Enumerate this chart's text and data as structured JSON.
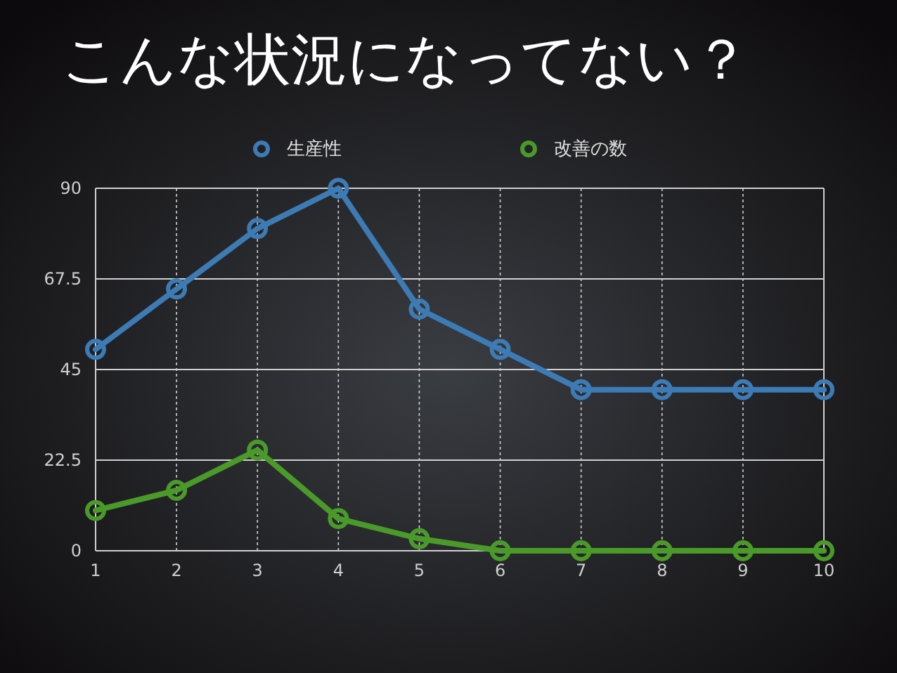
{
  "chart_data": {
    "type": "line",
    "title": "こんな状況になってない？",
    "x": [
      1,
      2,
      3,
      4,
      5,
      6,
      7,
      8,
      9,
      10
    ],
    "series": [
      {
        "name": "生産性",
        "color": "#3d7bb5",
        "values": [
          50,
          65,
          80,
          90,
          60,
          50,
          40,
          40,
          40,
          40
        ]
      },
      {
        "name": "改善の数",
        "color": "#4a9a2a",
        "values": [
          10,
          15,
          25,
          8,
          3,
          0,
          0,
          0,
          0,
          0
        ]
      }
    ],
    "xlim": [
      1,
      10
    ],
    "xticks": [
      1,
      2,
      3,
      4,
      5,
      6,
      7,
      8,
      9,
      10
    ],
    "ylim": [
      0,
      90
    ],
    "yticks": [
      0,
      22.5,
      45,
      67.5,
      90
    ],
    "grid": true,
    "legend": "top",
    "marker": "circle",
    "line_style": "solid"
  }
}
